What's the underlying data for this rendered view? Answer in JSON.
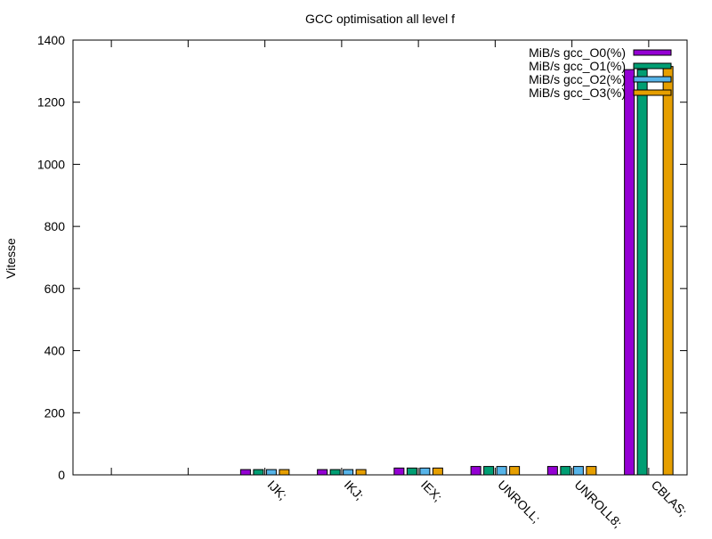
{
  "chart_data": {
    "type": "bar",
    "title": "GCC optimisation all level f",
    "xlabel": "",
    "ylabel": "Vitesse",
    "ylim": [
      0,
      1400
    ],
    "yticks": [
      0,
      200,
      400,
      600,
      800,
      1000,
      1200,
      1400
    ],
    "categories": [
      "",
      "",
      "IJK;",
      "IKJ;",
      "IEX;",
      "UNROLL;",
      "UNROLL8;",
      "CBLAS;"
    ],
    "series": [
      {
        "name": "MiB/s gcc_O0(%)",
        "color": "#9400d3",
        "values": [
          null,
          null,
          17,
          17,
          22,
          27,
          27,
          1305
        ]
      },
      {
        "name": "MiB/s gcc_O1(%)",
        "color": "#009e73",
        "values": [
          null,
          null,
          17,
          17,
          22,
          27,
          27,
          1305
        ]
      },
      {
        "name": "MiB/s gcc_O2(%)",
        "color": "#56b4e9",
        "values": [
          null,
          null,
          17,
          17,
          22,
          27,
          27,
          null
        ]
      },
      {
        "name": "MiB/s gcc_O3(%)",
        "color": "#e69f00",
        "values": [
          null,
          null,
          17,
          17,
          22,
          27,
          27,
          1315
        ]
      }
    ],
    "legend_position": "top-right",
    "grid": false
  }
}
